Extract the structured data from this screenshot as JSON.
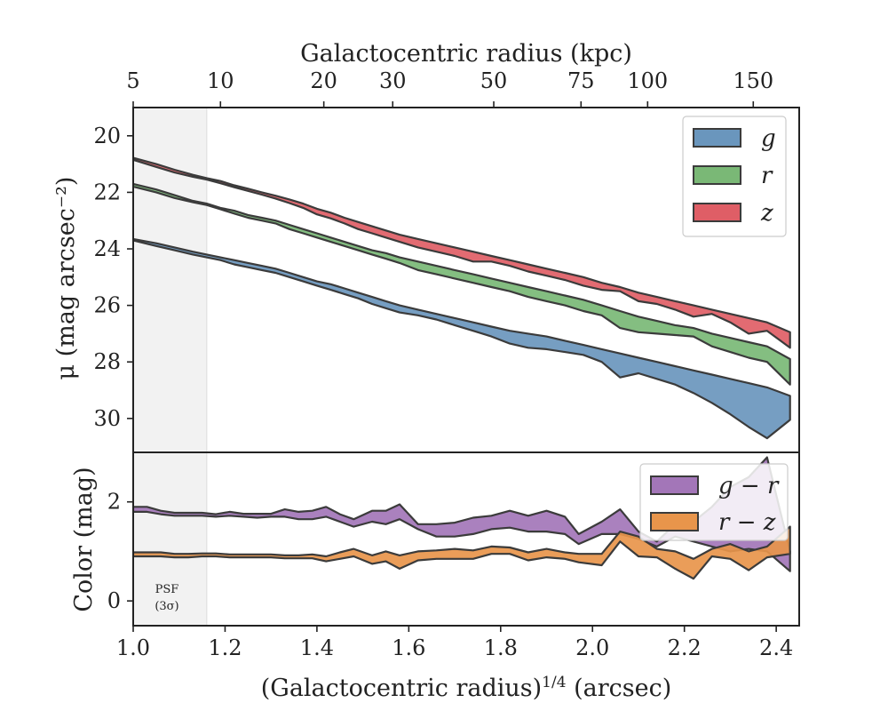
{
  "chart_data": {
    "type": "area",
    "x_label_bottom": "(Galactocentric radius)",
    "x_label_bottom_sup": "1/4",
    "x_label_bottom_unit": " (arcsec)",
    "x_label_top": "Galactocentric radius (kpc)",
    "psf_label_line1": "PSF",
    "psf_label_line2": "(3σ)",
    "psf_limit_x": 1.16,
    "xlim": [
      1.0,
      2.45
    ],
    "x_ticks": [
      1.0,
      1.2,
      1.4,
      1.6,
      1.8,
      2.0,
      2.2,
      2.4
    ],
    "x_tick_labels": [
      "1.0",
      "1.2",
      "1.4",
      "1.6",
      "1.8",
      "2.0",
      "2.2",
      "2.4"
    ],
    "top_ticks": [
      {
        "label": "5",
        "x": 1.0
      },
      {
        "label": "10",
        "x": 1.19
      },
      {
        "label": "20",
        "x": 1.415
      },
      {
        "label": "30",
        "x": 1.565
      },
      {
        "label": "50",
        "x": 1.785
      },
      {
        "label": "75",
        "x": 1.975
      },
      {
        "label": "100",
        "x": 2.12
      },
      {
        "label": "150",
        "x": 2.35
      }
    ],
    "sb_panel": {
      "ylabel": "μ (mag arcsec⁻²)",
      "ylim": [
        19.0,
        31.2
      ],
      "y_ticks": [
        20,
        22,
        24,
        26,
        28,
        30
      ],
      "y_tick_labels": [
        "20",
        "22",
        "24",
        "26",
        "28",
        "30"
      ],
      "legend_position": "top-right",
      "series": [
        {
          "name": "g",
          "color": "#6a96bd",
          "x": [
            1.0,
            1.05,
            1.09,
            1.13,
            1.16,
            1.19,
            1.22,
            1.25,
            1.28,
            1.31,
            1.34,
            1.37,
            1.4,
            1.43,
            1.46,
            1.49,
            1.52,
            1.55,
            1.58,
            1.62,
            1.66,
            1.7,
            1.74,
            1.78,
            1.82,
            1.86,
            1.9,
            1.94,
            1.98,
            2.02,
            2.06,
            2.1,
            2.14,
            2.18,
            2.22,
            2.26,
            2.3,
            2.34,
            2.38,
            2.43
          ],
          "lo": [
            23.65,
            23.8,
            23.95,
            24.1,
            24.2,
            24.3,
            24.4,
            24.5,
            24.6,
            24.7,
            24.85,
            25.0,
            25.15,
            25.25,
            25.4,
            25.55,
            25.7,
            25.85,
            26.0,
            26.15,
            26.3,
            26.45,
            26.6,
            26.75,
            26.9,
            27.0,
            27.1,
            27.25,
            27.4,
            27.55,
            27.7,
            27.85,
            28.0,
            28.15,
            28.3,
            28.45,
            28.6,
            28.75,
            28.9,
            29.2
          ],
          "hi": [
            23.7,
            23.9,
            24.05,
            24.2,
            24.3,
            24.4,
            24.55,
            24.65,
            24.75,
            24.85,
            25.0,
            25.15,
            25.3,
            25.45,
            25.6,
            25.75,
            25.95,
            26.1,
            26.25,
            26.35,
            26.5,
            26.7,
            26.9,
            27.1,
            27.35,
            27.5,
            27.55,
            27.65,
            27.75,
            28.0,
            28.55,
            28.4,
            28.6,
            28.8,
            29.1,
            29.45,
            29.85,
            30.3,
            30.7,
            30.05
          ]
        },
        {
          "name": "r",
          "color": "#7ab876",
          "x": [
            1.0,
            1.05,
            1.09,
            1.13,
            1.16,
            1.19,
            1.22,
            1.25,
            1.28,
            1.31,
            1.34,
            1.37,
            1.4,
            1.43,
            1.46,
            1.49,
            1.52,
            1.55,
            1.58,
            1.62,
            1.66,
            1.7,
            1.74,
            1.78,
            1.82,
            1.86,
            1.9,
            1.94,
            1.98,
            2.02,
            2.06,
            2.1,
            2.14,
            2.18,
            2.22,
            2.26,
            2.3,
            2.34,
            2.38,
            2.43
          ],
          "lo": [
            21.7,
            21.9,
            22.1,
            22.3,
            22.4,
            22.55,
            22.65,
            22.8,
            22.9,
            23.0,
            23.15,
            23.3,
            23.45,
            23.6,
            23.75,
            23.9,
            24.05,
            24.15,
            24.3,
            24.45,
            24.6,
            24.75,
            24.9,
            25.05,
            25.2,
            25.35,
            25.5,
            25.65,
            25.8,
            26.0,
            26.2,
            26.4,
            26.55,
            26.7,
            26.8,
            27.0,
            27.15,
            27.3,
            27.45,
            27.9
          ],
          "hi": [
            21.8,
            22.0,
            22.2,
            22.35,
            22.45,
            22.6,
            22.75,
            22.9,
            23.0,
            23.1,
            23.3,
            23.45,
            23.6,
            23.75,
            23.9,
            24.05,
            24.2,
            24.35,
            24.5,
            24.75,
            24.9,
            25.05,
            25.2,
            25.35,
            25.5,
            25.7,
            25.85,
            26.0,
            26.2,
            26.35,
            26.8,
            26.95,
            27.0,
            27.05,
            27.1,
            27.45,
            27.65,
            27.85,
            28.0,
            28.8
          ]
        },
        {
          "name": "z",
          "color": "#df5e66",
          "x": [
            1.0,
            1.05,
            1.09,
            1.13,
            1.16,
            1.19,
            1.22,
            1.25,
            1.28,
            1.31,
            1.34,
            1.37,
            1.4,
            1.43,
            1.46,
            1.49,
            1.52,
            1.55,
            1.58,
            1.62,
            1.66,
            1.7,
            1.74,
            1.78,
            1.82,
            1.86,
            1.9,
            1.94,
            1.98,
            2.02,
            2.06,
            2.1,
            2.14,
            2.18,
            2.22,
            2.26,
            2.3,
            2.34,
            2.38,
            2.43
          ],
          "lo": [
            20.78,
            21.0,
            21.2,
            21.38,
            21.5,
            21.6,
            21.75,
            21.87,
            22.0,
            22.12,
            22.25,
            22.4,
            22.58,
            22.72,
            22.9,
            23.05,
            23.2,
            23.35,
            23.5,
            23.65,
            23.8,
            23.95,
            24.1,
            24.25,
            24.4,
            24.55,
            24.7,
            24.85,
            25.0,
            25.2,
            25.35,
            25.55,
            25.7,
            25.85,
            26.0,
            26.15,
            26.3,
            26.45,
            26.6,
            26.95
          ],
          "hi": [
            20.85,
            21.1,
            21.3,
            21.45,
            21.55,
            21.68,
            21.82,
            21.95,
            22.08,
            22.22,
            22.38,
            22.55,
            22.78,
            22.92,
            23.1,
            23.3,
            23.45,
            23.6,
            23.75,
            23.95,
            24.1,
            24.25,
            24.45,
            24.45,
            24.6,
            24.8,
            24.95,
            25.1,
            25.3,
            25.45,
            25.5,
            25.85,
            25.95,
            26.15,
            26.4,
            26.3,
            26.6,
            27.0,
            26.9,
            27.5
          ]
        }
      ]
    },
    "color_panel": {
      "ylabel": "Color (mag)",
      "ylim": [
        -0.5,
        3.0
      ],
      "y_ticks": [
        0,
        2
      ],
      "y_tick_labels": [
        "0",
        "2"
      ],
      "legend_position": "top-right",
      "series": [
        {
          "name": "g − r",
          "color": "#a376b8",
          "x": [
            1.0,
            1.03,
            1.06,
            1.09,
            1.12,
            1.15,
            1.18,
            1.21,
            1.24,
            1.27,
            1.3,
            1.33,
            1.36,
            1.39,
            1.42,
            1.45,
            1.48,
            1.52,
            1.55,
            1.58,
            1.62,
            1.66,
            1.7,
            1.74,
            1.78,
            1.82,
            1.86,
            1.9,
            1.94,
            1.97,
            2.02,
            2.06,
            2.1,
            2.14,
            2.18,
            2.22,
            2.26,
            2.3,
            2.34,
            2.38,
            2.43
          ],
          "lo": [
            1.8,
            1.8,
            1.75,
            1.72,
            1.72,
            1.72,
            1.7,
            1.72,
            1.7,
            1.68,
            1.7,
            1.7,
            1.65,
            1.65,
            1.7,
            1.6,
            1.5,
            1.6,
            1.55,
            1.65,
            1.45,
            1.3,
            1.3,
            1.35,
            1.45,
            1.48,
            1.4,
            1.4,
            1.35,
            1.15,
            1.35,
            1.35,
            1.25,
            1.1,
            1.3,
            1.2,
            1.1,
            1.0,
            1.05,
            1.0,
            0.6
          ],
          "hi": [
            1.9,
            1.9,
            1.82,
            1.78,
            1.78,
            1.78,
            1.75,
            1.8,
            1.76,
            1.76,
            1.76,
            1.85,
            1.8,
            1.82,
            1.9,
            1.75,
            1.65,
            1.82,
            1.82,
            1.95,
            1.55,
            1.55,
            1.58,
            1.68,
            1.72,
            1.82,
            1.72,
            1.82,
            1.7,
            1.35,
            1.6,
            1.85,
            1.4,
            1.2,
            1.55,
            1.6,
            1.9,
            2.3,
            2.5,
            2.9,
            1.0
          ]
        },
        {
          "name": "r − z",
          "color": "#e8954b",
          "x": [
            1.0,
            1.03,
            1.06,
            1.09,
            1.12,
            1.15,
            1.18,
            1.21,
            1.24,
            1.27,
            1.3,
            1.33,
            1.36,
            1.39,
            1.42,
            1.45,
            1.48,
            1.52,
            1.55,
            1.58,
            1.62,
            1.66,
            1.7,
            1.74,
            1.78,
            1.82,
            1.86,
            1.9,
            1.94,
            1.97,
            2.02,
            2.06,
            2.1,
            2.14,
            2.18,
            2.22,
            2.26,
            2.3,
            2.34,
            2.38,
            2.43
          ],
          "lo": [
            0.9,
            0.9,
            0.9,
            0.88,
            0.88,
            0.9,
            0.9,
            0.88,
            0.88,
            0.88,
            0.88,
            0.86,
            0.86,
            0.86,
            0.8,
            0.85,
            0.9,
            0.75,
            0.8,
            0.65,
            0.82,
            0.85,
            0.85,
            0.85,
            0.95,
            0.95,
            0.82,
            0.88,
            0.85,
            0.78,
            0.72,
            1.2,
            0.9,
            0.88,
            0.65,
            0.45,
            0.9,
            0.85,
            0.62,
            0.88,
            0.95
          ],
          "hi": [
            0.98,
            0.98,
            0.98,
            0.95,
            0.95,
            0.96,
            0.96,
            0.94,
            0.94,
            0.94,
            0.94,
            0.92,
            0.92,
            0.94,
            0.9,
            0.98,
            1.05,
            0.92,
            1.0,
            0.92,
            1.0,
            1.02,
            1.05,
            1.02,
            1.1,
            1.08,
            0.98,
            1.05,
            0.98,
            0.95,
            0.95,
            1.4,
            1.3,
            1.05,
            1.0,
            0.85,
            1.05,
            1.15,
            1.0,
            1.1,
            1.5
          ]
        }
      ]
    }
  }
}
